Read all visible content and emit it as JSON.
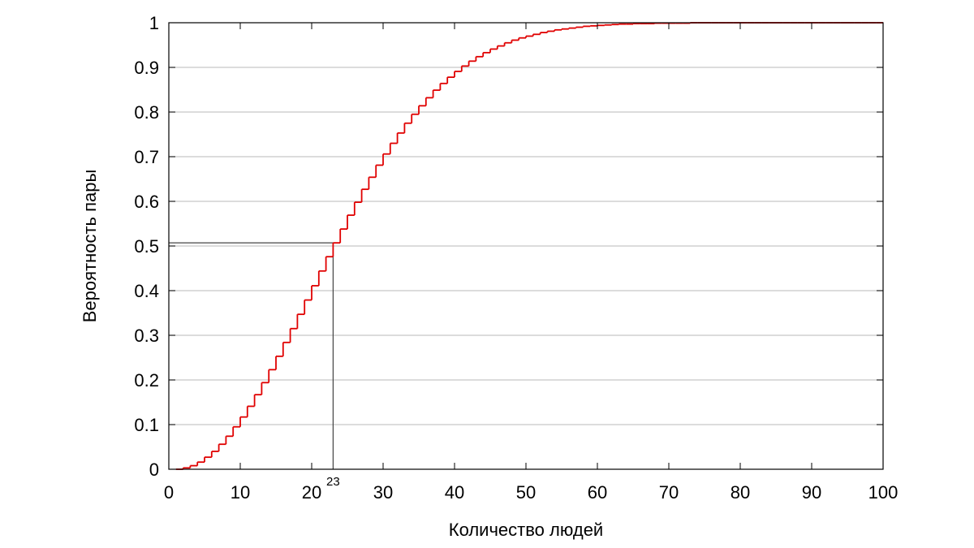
{
  "chart_data": {
    "type": "line",
    "step": true,
    "xlabel": "Количество людей",
    "ylabel": "Вероятность пары",
    "xlim": [
      0,
      100
    ],
    "ylim": [
      0,
      1
    ],
    "x_ticks": [
      "0",
      "10",
      "20",
      "30",
      "40",
      "50",
      "60",
      "70",
      "80",
      "90",
      "100"
    ],
    "y_ticks": [
      "0",
      "0.1",
      "0.2",
      "0.3",
      "0.4",
      "0.5",
      "0.6",
      "0.7",
      "0.8",
      "0.9",
      "1"
    ],
    "grid": "horizontal",
    "series_color": "#e00000",
    "x": [
      1,
      2,
      3,
      4,
      5,
      6,
      7,
      8,
      9,
      10,
      11,
      12,
      13,
      14,
      15,
      16,
      17,
      18,
      19,
      20,
      21,
      22,
      23,
      24,
      25,
      26,
      27,
      28,
      29,
      30,
      31,
      32,
      33,
      34,
      35,
      36,
      37,
      38,
      39,
      40,
      41,
      42,
      43,
      44,
      45,
      46,
      47,
      48,
      49,
      50,
      51,
      52,
      53,
      54,
      55,
      56,
      57,
      58,
      59,
      60,
      61,
      62,
      63,
      64,
      65,
      66,
      67,
      68,
      69,
      70,
      71,
      72,
      73,
      74,
      75,
      76,
      77,
      78,
      79,
      80,
      81,
      82,
      83,
      84,
      85,
      86,
      87,
      88,
      89,
      90,
      91,
      92,
      93,
      94,
      95,
      96,
      97,
      98,
      99,
      100
    ],
    "y": [
      0.0,
      0.003,
      0.008,
      0.016,
      0.027,
      0.04,
      0.056,
      0.074,
      0.095,
      0.117,
      0.141,
      0.167,
      0.194,
      0.223,
      0.253,
      0.284,
      0.315,
      0.347,
      0.379,
      0.411,
      0.444,
      0.476,
      0.507,
      0.538,
      0.569,
      0.598,
      0.627,
      0.654,
      0.681,
      0.706,
      0.73,
      0.753,
      0.775,
      0.795,
      0.814,
      0.832,
      0.849,
      0.864,
      0.878,
      0.891,
      0.903,
      0.914,
      0.924,
      0.933,
      0.941,
      0.948,
      0.955,
      0.961,
      0.966,
      0.97,
      0.974,
      0.978,
      0.981,
      0.984,
      0.986,
      0.988,
      0.99,
      0.992,
      0.993,
      0.994,
      0.995,
      0.996,
      0.997,
      0.997,
      0.998,
      0.998,
      0.998,
      0.999,
      0.999,
      0.999,
      0.999,
      0.999,
      1.0,
      1.0,
      1.0,
      1.0,
      1.0,
      1.0,
      1.0,
      1.0,
      1.0,
      1.0,
      1.0,
      1.0,
      1.0,
      1.0,
      1.0,
      1.0,
      1.0,
      1.0,
      1.0,
      1.0,
      1.0,
      1.0,
      1.0,
      1.0,
      1.0,
      1.0,
      1.0,
      1.0
    ],
    "annotation": {
      "x": 23,
      "y": 0.507,
      "label": "23",
      "color": "#444444"
    }
  }
}
